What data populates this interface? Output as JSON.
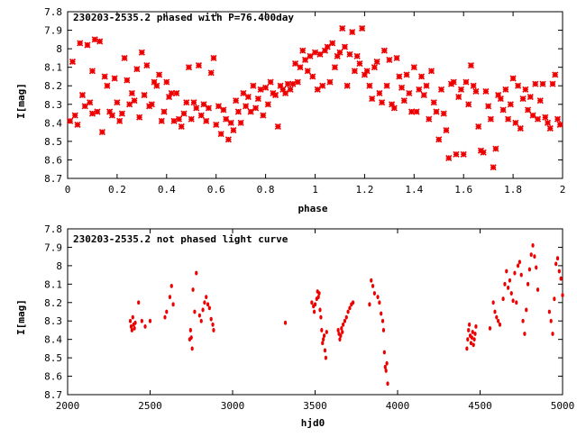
{
  "colors": {
    "points": "#ee0000",
    "axes": "#000000",
    "background": "#ffffff"
  },
  "chart_data": [
    {
      "type": "scatter",
      "title": "230203-2535.2 phased with P=76.400day",
      "xlabel": "phase",
      "ylabel": "I[mag]",
      "xlim": [
        0,
        2
      ],
      "ylim": [
        8.7,
        7.8
      ],
      "y_inverted": true,
      "grid": false,
      "marker": "star",
      "xticks": [
        0,
        0.2,
        0.4,
        0.6,
        0.8,
        1,
        1.2,
        1.4,
        1.6,
        1.8,
        2
      ],
      "xtick_labels": [
        "0",
        "0.2",
        "0.4",
        "0.6",
        "0.8",
        "1",
        "1.2",
        "1.4",
        "1.6",
        "1.8",
        "2"
      ],
      "yticks": [
        7.8,
        7.9,
        8,
        8.1,
        8.2,
        8.3,
        8.4,
        8.5,
        8.6,
        8.7
      ],
      "ytick_labels": [
        "7.8",
        "7.9",
        "8",
        "8.1",
        "8.2",
        "8.3",
        "8.4",
        "8.5",
        "8.6",
        "8.7"
      ],
      "points": [
        [
          0.01,
          8.39
        ],
        [
          0.02,
          8.07
        ],
        [
          0.03,
          8.36
        ],
        [
          0.04,
          8.41
        ],
        [
          0.05,
          7.97
        ],
        [
          0.06,
          8.25
        ],
        [
          0.07,
          8.31
        ],
        [
          0.08,
          7.98
        ],
        [
          0.09,
          8.29
        ],
        [
          0.1,
          8.12
        ],
        [
          0.1,
          8.35
        ],
        [
          0.11,
          7.95
        ],
        [
          0.12,
          8.34
        ],
        [
          0.13,
          7.96
        ],
        [
          0.14,
          8.45
        ],
        [
          0.15,
          8.15
        ],
        [
          0.16,
          8.2
        ],
        [
          0.17,
          8.34
        ],
        [
          0.18,
          8.36
        ],
        [
          0.19,
          8.16
        ],
        [
          0.2,
          8.29
        ],
        [
          0.21,
          8.39
        ],
        [
          0.22,
          8.35
        ],
        [
          0.23,
          8.05
        ],
        [
          0.24,
          8.17
        ],
        [
          0.25,
          8.3
        ],
        [
          0.26,
          8.24
        ],
        [
          0.27,
          8.28
        ],
        [
          0.28,
          8.11
        ],
        [
          0.29,
          8.37
        ],
        [
          0.3,
          8.02
        ],
        [
          0.31,
          8.25
        ],
        [
          0.32,
          8.09
        ],
        [
          0.33,
          8.31
        ],
        [
          0.34,
          8.3
        ],
        [
          0.35,
          8.18
        ],
        [
          0.36,
          8.2
        ],
        [
          0.37,
          8.14
        ],
        [
          0.38,
          8.39
        ],
        [
          0.39,
          8.34
        ],
        [
          0.4,
          8.18
        ],
        [
          0.41,
          8.26
        ],
        [
          0.42,
          8.24
        ],
        [
          0.43,
          8.39
        ],
        [
          0.44,
          8.24
        ],
        [
          0.45,
          8.38
        ],
        [
          0.46,
          8.42
        ],
        [
          0.47,
          8.35
        ],
        [
          0.48,
          8.29
        ],
        [
          0.49,
          8.1
        ],
        [
          0.5,
          8.38
        ],
        [
          0.51,
          8.29
        ],
        [
          0.52,
          8.32
        ],
        [
          0.53,
          8.09
        ],
        [
          0.54,
          8.36
        ],
        [
          0.55,
          8.3
        ],
        [
          0.56,
          8.39
        ],
        [
          0.57,
          8.32
        ],
        [
          0.58,
          8.13
        ],
        [
          0.59,
          8.05
        ],
        [
          0.6,
          8.41
        ],
        [
          0.61,
          8.31
        ],
        [
          0.62,
          8.46
        ],
        [
          0.63,
          8.33
        ],
        [
          0.64,
          8.38
        ],
        [
          0.65,
          8.49
        ],
        [
          0.66,
          8.4
        ],
        [
          0.67,
          8.44
        ],
        [
          0.68,
          8.28
        ],
        [
          0.69,
          8.34
        ],
        [
          0.7,
          8.4
        ],
        [
          0.71,
          8.24
        ],
        [
          0.72,
          8.31
        ],
        [
          0.73,
          8.26
        ],
        [
          0.74,
          8.34
        ],
        [
          0.75,
          8.2
        ],
        [
          0.76,
          8.32
        ],
        [
          0.77,
          8.27
        ],
        [
          0.78,
          8.22
        ],
        [
          0.79,
          8.36
        ],
        [
          0.8,
          8.21
        ],
        [
          0.81,
          8.3
        ],
        [
          0.82,
          8.18
        ],
        [
          0.83,
          8.24
        ],
        [
          0.84,
          8.25
        ],
        [
          0.85,
          8.42
        ],
        [
          0.86,
          8.2
        ],
        [
          0.87,
          8.22
        ],
        [
          0.88,
          8.24
        ],
        [
          0.89,
          8.19
        ],
        [
          0.9,
          8.22
        ],
        [
          0.91,
          8.19
        ],
        [
          0.92,
          8.08
        ],
        [
          0.93,
          8.18
        ],
        [
          0.94,
          8.1
        ],
        [
          0.95,
          8.01
        ],
        [
          0.96,
          8.06
        ],
        [
          0.97,
          8.12
        ],
        [
          0.98,
          8.04
        ],
        [
          0.99,
          8.15
        ],
        [
          1.0,
          8.02
        ],
        [
          1.01,
          8.22
        ],
        [
          1.02,
          8.03
        ],
        [
          1.03,
          8.2
        ],
        [
          1.04,
          8.01
        ],
        [
          1.05,
          7.99
        ],
        [
          1.06,
          8.18
        ],
        [
          1.07,
          7.97
        ],
        [
          1.08,
          8.1
        ],
        [
          1.09,
          8.04
        ],
        [
          1.1,
          8.02
        ],
        [
          1.11,
          7.89
        ],
        [
          1.12,
          7.99
        ],
        [
          1.13,
          8.2
        ],
        [
          1.14,
          8.03
        ],
        [
          1.15,
          7.91
        ],
        [
          1.16,
          8.12
        ],
        [
          1.17,
          8.04
        ],
        [
          1.18,
          8.08
        ],
        [
          1.19,
          7.89
        ],
        [
          1.2,
          8.14
        ],
        [
          1.21,
          8.12
        ],
        [
          1.22,
          8.2
        ],
        [
          1.23,
          8.27
        ],
        [
          1.24,
          8.1
        ],
        [
          1.25,
          8.07
        ],
        [
          1.26,
          8.24
        ],
        [
          1.27,
          8.29
        ],
        [
          1.28,
          8.01
        ],
        [
          1.29,
          8.2
        ],
        [
          1.3,
          8.06
        ],
        [
          1.31,
          8.3
        ],
        [
          1.32,
          8.32
        ],
        [
          1.33,
          8.05
        ],
        [
          1.34,
          8.15
        ],
        [
          1.35,
          8.21
        ],
        [
          1.36,
          8.28
        ],
        [
          1.37,
          8.14
        ],
        [
          1.38,
          8.24
        ],
        [
          1.39,
          8.34
        ],
        [
          1.4,
          8.1
        ],
        [
          1.41,
          8.34
        ],
        [
          1.42,
          8.22
        ],
        [
          1.43,
          8.15
        ],
        [
          1.44,
          8.25
        ],
        [
          1.45,
          8.2
        ],
        [
          1.46,
          8.38
        ],
        [
          1.47,
          8.12
        ],
        [
          1.48,
          8.29
        ],
        [
          1.49,
          8.34
        ],
        [
          1.5,
          8.49
        ],
        [
          1.51,
          8.22
        ],
        [
          1.52,
          8.35
        ],
        [
          1.53,
          8.44
        ],
        [
          1.54,
          8.59
        ],
        [
          1.55,
          8.19
        ],
        [
          1.56,
          8.18
        ],
        [
          1.57,
          8.57
        ],
        [
          1.58,
          8.26
        ],
        [
          1.59,
          8.22
        ],
        [
          1.6,
          8.57
        ],
        [
          1.61,
          8.18
        ],
        [
          1.62,
          8.3
        ],
        [
          1.63,
          8.09
        ],
        [
          1.64,
          8.2
        ],
        [
          1.65,
          8.23
        ],
        [
          1.66,
          8.42
        ],
        [
          1.67,
          8.55
        ],
        [
          1.68,
          8.56
        ],
        [
          1.69,
          8.23
        ],
        [
          1.7,
          8.31
        ],
        [
          1.71,
          8.38
        ],
        [
          1.72,
          8.64
        ],
        [
          1.73,
          8.54
        ],
        [
          1.74,
          8.25
        ],
        [
          1.75,
          8.27
        ],
        [
          1.76,
          8.33
        ],
        [
          1.77,
          8.22
        ],
        [
          1.78,
          8.38
        ],
        [
          1.79,
          8.3
        ],
        [
          1.8,
          8.16
        ],
        [
          1.81,
          8.4
        ],
        [
          1.82,
          8.2
        ],
        [
          1.83,
          8.43
        ],
        [
          1.84,
          8.27
        ],
        [
          1.85,
          8.22
        ],
        [
          1.86,
          8.33
        ],
        [
          1.87,
          8.26
        ],
        [
          1.88,
          8.36
        ],
        [
          1.89,
          8.19
        ],
        [
          1.9,
          8.38
        ],
        [
          1.91,
          8.28
        ],
        [
          1.92,
          8.19
        ],
        [
          1.93,
          8.37
        ],
        [
          1.94,
          8.4
        ],
        [
          1.95,
          8.43
        ],
        [
          1.96,
          8.19
        ],
        [
          1.97,
          8.14
        ],
        [
          1.98,
          8.38
        ],
        [
          1.99,
          8.41
        ]
      ]
    },
    {
      "type": "scatter",
      "title": "230203-2535.2 not phased light curve",
      "xlabel": "hjd0",
      "ylabel": "I[mag]",
      "xlim": [
        2000,
        5000
      ],
      "ylim": [
        8.7,
        7.8
      ],
      "y_inverted": true,
      "grid": false,
      "marker": "dot",
      "xticks": [
        2000,
        2500,
        3000,
        3500,
        4000,
        4500,
        5000
      ],
      "xtick_labels": [
        "2000",
        "2500",
        "3000",
        "3500",
        "4000",
        "4500",
        "5000"
      ],
      "yticks": [
        7.8,
        7.9,
        8,
        8.1,
        8.2,
        8.3,
        8.4,
        8.5,
        8.6,
        8.7
      ],
      "ytick_labels": [
        "7.8",
        "7.9",
        "8",
        "8.1",
        "8.2",
        "8.3",
        "8.4",
        "8.5",
        "8.6",
        "8.7"
      ],
      "points": [
        [
          2380,
          8.3
        ],
        [
          2385,
          8.33
        ],
        [
          2390,
          8.35
        ],
        [
          2395,
          8.28
        ],
        [
          2400,
          8.32
        ],
        [
          2405,
          8.34
        ],
        [
          2410,
          8.31
        ],
        [
          2430,
          8.2
        ],
        [
          2450,
          8.3
        ],
        [
          2470,
          8.33
        ],
        [
          2500,
          8.3
        ],
        [
          2590,
          8.28
        ],
        [
          2600,
          8.25
        ],
        [
          2620,
          8.17
        ],
        [
          2630,
          8.11
        ],
        [
          2640,
          8.21
        ],
        [
          2740,
          8.4
        ],
        [
          2745,
          8.35
        ],
        [
          2750,
          8.39
        ],
        [
          2755,
          8.45
        ],
        [
          2760,
          8.13
        ],
        [
          2770,
          8.25
        ],
        [
          2780,
          8.04
        ],
        [
          2800,
          8.27
        ],
        [
          2810,
          8.3
        ],
        [
          2820,
          8.24
        ],
        [
          2830,
          8.2
        ],
        [
          2840,
          8.17
        ],
        [
          2850,
          8.21
        ],
        [
          2860,
          8.23
        ],
        [
          2870,
          8.29
        ],
        [
          2880,
          8.32
        ],
        [
          2885,
          8.35
        ],
        [
          3320,
          8.31
        ],
        [
          3480,
          8.2
        ],
        [
          3490,
          8.22
        ],
        [
          3495,
          8.25
        ],
        [
          3500,
          8.21
        ],
        [
          3510,
          8.18
        ],
        [
          3515,
          8.14
        ],
        [
          3520,
          8.17
        ],
        [
          3525,
          8.15
        ],
        [
          3530,
          8.24
        ],
        [
          3535,
          8.28
        ],
        [
          3540,
          8.35
        ],
        [
          3545,
          8.42
        ],
        [
          3550,
          8.4
        ],
        [
          3555,
          8.38
        ],
        [
          3560,
          8.46
        ],
        [
          3565,
          8.5
        ],
        [
          3570,
          8.36
        ],
        [
          3640,
          8.35
        ],
        [
          3645,
          8.37
        ],
        [
          3650,
          8.4
        ],
        [
          3655,
          8.38
        ],
        [
          3660,
          8.34
        ],
        [
          3665,
          8.36
        ],
        [
          3670,
          8.32
        ],
        [
          3680,
          8.3
        ],
        [
          3690,
          8.28
        ],
        [
          3700,
          8.25
        ],
        [
          3710,
          8.23
        ],
        [
          3720,
          8.21
        ],
        [
          3730,
          8.2
        ],
        [
          3830,
          8.21
        ],
        [
          3840,
          8.08
        ],
        [
          3850,
          8.11
        ],
        [
          3860,
          8.15
        ],
        [
          3880,
          8.17
        ],
        [
          3890,
          8.2
        ],
        [
          3900,
          8.26
        ],
        [
          3910,
          8.3
        ],
        [
          3915,
          8.35
        ],
        [
          3920,
          8.47
        ],
        [
          3925,
          8.55
        ],
        [
          3930,
          8.57
        ],
        [
          3935,
          8.53
        ],
        [
          3940,
          8.64
        ],
        [
          4420,
          8.45
        ],
        [
          4425,
          8.4
        ],
        [
          4430,
          8.35
        ],
        [
          4435,
          8.32
        ],
        [
          4440,
          8.38
        ],
        [
          4445,
          8.42
        ],
        [
          4450,
          8.39
        ],
        [
          4455,
          8.36
        ],
        [
          4460,
          8.43
        ],
        [
          4465,
          8.4
        ],
        [
          4470,
          8.37
        ],
        [
          4475,
          8.33
        ],
        [
          4560,
          8.34
        ],
        [
          4580,
          8.2
        ],
        [
          4590,
          8.25
        ],
        [
          4600,
          8.28
        ],
        [
          4610,
          8.3
        ],
        [
          4620,
          8.32
        ],
        [
          4640,
          8.18
        ],
        [
          4650,
          8.1
        ],
        [
          4660,
          8.03
        ],
        [
          4670,
          8.12
        ],
        [
          4680,
          8.08
        ],
        [
          4690,
          8.15
        ],
        [
          4700,
          8.19
        ],
        [
          4710,
          8.04
        ],
        [
          4720,
          8.2
        ],
        [
          4730,
          8.0
        ],
        [
          4740,
          7.98
        ],
        [
          4750,
          8.05
        ],
        [
          4760,
          8.3
        ],
        [
          4770,
          8.37
        ],
        [
          4780,
          8.24
        ],
        [
          4790,
          8.1
        ],
        [
          4800,
          8.02
        ],
        [
          4810,
          7.94
        ],
        [
          4820,
          7.89
        ],
        [
          4830,
          7.95
        ],
        [
          4840,
          8.01
        ],
        [
          4850,
          8.13
        ],
        [
          4920,
          8.25
        ],
        [
          4930,
          8.3
        ],
        [
          4940,
          8.37
        ],
        [
          4950,
          8.18
        ],
        [
          4960,
          7.99
        ],
        [
          4970,
          7.96
        ],
        [
          4980,
          8.03
        ],
        [
          4990,
          8.07
        ],
        [
          5000,
          8.16
        ]
      ]
    }
  ]
}
